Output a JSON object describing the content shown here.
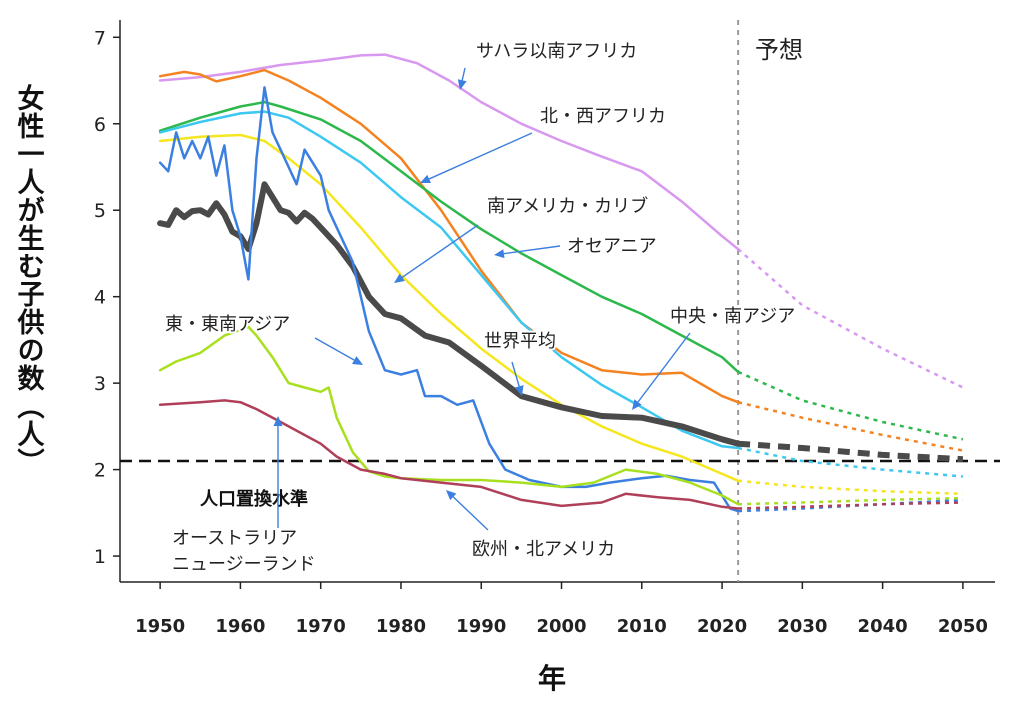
{
  "chart_data": {
    "type": "line",
    "xlabel": "年",
    "ylabel": "女性一人が生む子供の数（人）",
    "xlim": [
      1945,
      2054
    ],
    "ylim": [
      0.7,
      7.2
    ],
    "xticks": [
      1950,
      1960,
      1970,
      1980,
      1990,
      2000,
      2010,
      2020,
      2030,
      2040,
      2050
    ],
    "yticks": [
      1,
      2,
      3,
      4,
      5,
      6,
      7
    ],
    "projection_start": 2022,
    "projection_label": "予想",
    "replacement_level": 2.1,
    "replacement_label": "人口置換水準",
    "series": [
      {
        "name": "サハラ以南アフリカ",
        "color": "#d898f0",
        "x": [
          1950,
          1955,
          1960,
          1965,
          1970,
          1975,
          1978,
          1982,
          1986,
          1990,
          1995,
          2000,
          2005,
          2010,
          2015,
          2020,
          2022
        ],
        "y": [
          6.5,
          6.54,
          6.6,
          6.68,
          6.73,
          6.79,
          6.8,
          6.7,
          6.5,
          6.25,
          6.0,
          5.8,
          5.62,
          5.45,
          5.1,
          4.7,
          4.55
        ],
        "proj_x": [
          2022,
          2030,
          2040,
          2050
        ],
        "proj_y": [
          4.55,
          3.9,
          3.4,
          2.95
        ]
      },
      {
        "name": "北・西アフリカ",
        "color": "#f58220",
        "x": [
          1950,
          1953,
          1955,
          1957,
          1960,
          1963,
          1966,
          1970,
          1975,
          1980,
          1985,
          1990,
          1995,
          2000,
          2005,
          2010,
          2015,
          2020,
          2022
        ],
        "y": [
          6.55,
          6.6,
          6.57,
          6.49,
          6.55,
          6.62,
          6.5,
          6.3,
          6.0,
          5.6,
          5.0,
          4.3,
          3.7,
          3.35,
          3.15,
          3.1,
          3.12,
          2.85,
          2.78
        ],
        "proj_x": [
          2022,
          2030,
          2040,
          2050
        ],
        "proj_y": [
          2.78,
          2.6,
          2.4,
          2.22
        ]
      },
      {
        "name": "オセアニア",
        "color": "#2db84b",
        "x": [
          1950,
          1955,
          1960,
          1963,
          1965,
          1970,
          1975,
          1980,
          1985,
          1990,
          1995,
          2000,
          2005,
          2010,
          2015,
          2020,
          2022
        ],
        "y": [
          5.92,
          6.07,
          6.2,
          6.25,
          6.2,
          6.05,
          5.8,
          5.45,
          5.1,
          4.78,
          4.5,
          4.25,
          4.0,
          3.8,
          3.55,
          3.3,
          3.13
        ],
        "proj_x": [
          2022,
          2030,
          2040,
          2050
        ],
        "proj_y": [
          3.13,
          2.8,
          2.55,
          2.35
        ]
      },
      {
        "name": "南アメリカ・カリブ",
        "color": "#3cc8f0",
        "x": [
          1950,
          1955,
          1960,
          1963,
          1966,
          1970,
          1975,
          1980,
          1985,
          1990,
          1995,
          2000,
          2005,
          2010,
          2015,
          2020,
          2022
        ],
        "y": [
          5.9,
          6.02,
          6.12,
          6.14,
          6.07,
          5.85,
          5.55,
          5.15,
          4.8,
          4.25,
          3.7,
          3.3,
          2.98,
          2.72,
          2.45,
          2.27,
          2.25
        ],
        "proj_x": [
          2022,
          2030,
          2040,
          2050
        ],
        "proj_y": [
          2.25,
          2.1,
          2.0,
          1.92
        ]
      },
      {
        "name": "中央・南アジア",
        "color": "#f5e61e",
        "x": [
          1950,
          1955,
          1960,
          1963,
          1966,
          1970,
          1975,
          1980,
          1985,
          1990,
          1995,
          2000,
          2005,
          2010,
          2015,
          2020,
          2022
        ],
        "y": [
          5.8,
          5.85,
          5.87,
          5.8,
          5.6,
          5.3,
          4.8,
          4.25,
          3.8,
          3.4,
          3.05,
          2.75,
          2.5,
          2.3,
          2.15,
          1.95,
          1.87
        ],
        "proj_x": [
          2022,
          2030,
          2040,
          2050
        ],
        "proj_y": [
          1.87,
          1.8,
          1.75,
          1.72
        ]
      },
      {
        "name": "世界平均",
        "color": "#4a4a4a",
        "x": [
          1950,
          1951,
          1952,
          1953,
          1954,
          1955,
          1956,
          1957,
          1958,
          1959,
          1960,
          1961,
          1962,
          1963,
          1964,
          1965,
          1966,
          1967,
          1968,
          1969,
          1970,
          1972,
          1974,
          1976,
          1978,
          1980,
          1983,
          1986,
          1990,
          1995,
          2000,
          2005,
          2010,
          2015,
          2020,
          2022
        ],
        "y": [
          4.85,
          4.83,
          5.0,
          4.92,
          4.99,
          5.0,
          4.95,
          5.08,
          4.95,
          4.75,
          4.7,
          4.55,
          4.85,
          5.3,
          5.15,
          5.0,
          4.97,
          4.87,
          4.97,
          4.9,
          4.8,
          4.6,
          4.35,
          4.0,
          3.8,
          3.75,
          3.55,
          3.47,
          3.2,
          2.85,
          2.72,
          2.62,
          2.6,
          2.5,
          2.35,
          2.3
        ],
        "proj_x": [
          2022,
          2030,
          2040,
          2050
        ],
        "proj_y": [
          2.3,
          2.25,
          2.17,
          2.12
        ]
      },
      {
        "name": "東・東南アジア",
        "color": "#3b7fe0",
        "x": [
          1950,
          1951,
          1952,
          1953,
          1954,
          1955,
          1956,
          1957,
          1958,
          1959,
          1960,
          1961,
          1962,
          1963,
          1964,
          1965,
          1966,
          1967,
          1968,
          1969,
          1970,
          1971,
          1972,
          1974,
          1976,
          1978,
          1980,
          1982,
          1983,
          1985,
          1987,
          1989,
          1991,
          1993,
          1996,
          2000,
          2003,
          2006,
          2010,
          2013,
          2016,
          2019,
          2021,
          2022
        ],
        "y": [
          5.55,
          5.45,
          5.9,
          5.6,
          5.8,
          5.6,
          5.85,
          5.4,
          5.75,
          5.0,
          4.7,
          4.2,
          5.6,
          6.42,
          5.9,
          5.7,
          5.5,
          5.3,
          5.7,
          5.55,
          5.4,
          5.0,
          4.8,
          4.4,
          3.6,
          3.15,
          3.1,
          3.15,
          2.85,
          2.85,
          2.75,
          2.8,
          2.3,
          2.0,
          1.88,
          1.8,
          1.8,
          1.85,
          1.9,
          1.93,
          1.88,
          1.85,
          1.55,
          1.52
        ],
        "proj_x": [
          2022,
          2030,
          2040,
          2050
        ],
        "proj_y": [
          1.52,
          1.55,
          1.6,
          1.65
        ]
      },
      {
        "name": "オーストラリア ニュージーランド",
        "color": "#a8e020",
        "x": [
          1950,
          1952,
          1955,
          1958,
          1961,
          1962,
          1964,
          1966,
          1968,
          1970,
          1971,
          1972,
          1974,
          1976,
          1978,
          1980,
          1985,
          1990,
          1995,
          2000,
          2004,
          2008,
          2012,
          2016,
          2020,
          2022
        ],
        "y": [
          3.15,
          3.25,
          3.35,
          3.55,
          3.65,
          3.55,
          3.3,
          3.0,
          2.95,
          2.9,
          2.95,
          2.6,
          2.2,
          1.98,
          1.92,
          1.9,
          1.88,
          1.88,
          1.85,
          1.8,
          1.85,
          2.0,
          1.95,
          1.85,
          1.7,
          1.6
        ],
        "proj_x": [
          2022,
          2030,
          2040,
          2050
        ],
        "proj_y": [
          1.6,
          1.62,
          1.65,
          1.67
        ]
      },
      {
        "name": "欧州・北アメリカ",
        "color": "#b0405a",
        "x": [
          1950,
          1955,
          1958,
          1960,
          1962,
          1965,
          1968,
          1970,
          1972,
          1975,
          1978,
          1980,
          1985,
          1990,
          1995,
          2000,
          2005,
          2008,
          2012,
          2016,
          2020,
          2022
        ],
        "y": [
          2.75,
          2.78,
          2.8,
          2.78,
          2.7,
          2.55,
          2.4,
          2.3,
          2.15,
          2.0,
          1.95,
          1.9,
          1.85,
          1.8,
          1.65,
          1.58,
          1.62,
          1.72,
          1.68,
          1.65,
          1.57,
          1.55
        ],
        "proj_x": [
          2022,
          2030,
          2040,
          2050
        ],
        "proj_y": [
          1.55,
          1.57,
          1.6,
          1.62
        ]
      }
    ],
    "annotations": [
      {
        "text": "サハラ以南アフリカ"
      },
      {
        "text": "北・西アフリカ"
      },
      {
        "text": "南アメリカ・カリブ"
      },
      {
        "text": "オセアニア"
      },
      {
        "text": "中央・南アジア"
      },
      {
        "text": "東・東南アジア"
      },
      {
        "text": "世界平均"
      },
      {
        "text": "欧州・北アメリカ"
      },
      {
        "text": "オーストラリア"
      },
      {
        "text": "ニュージーランド"
      }
    ]
  }
}
